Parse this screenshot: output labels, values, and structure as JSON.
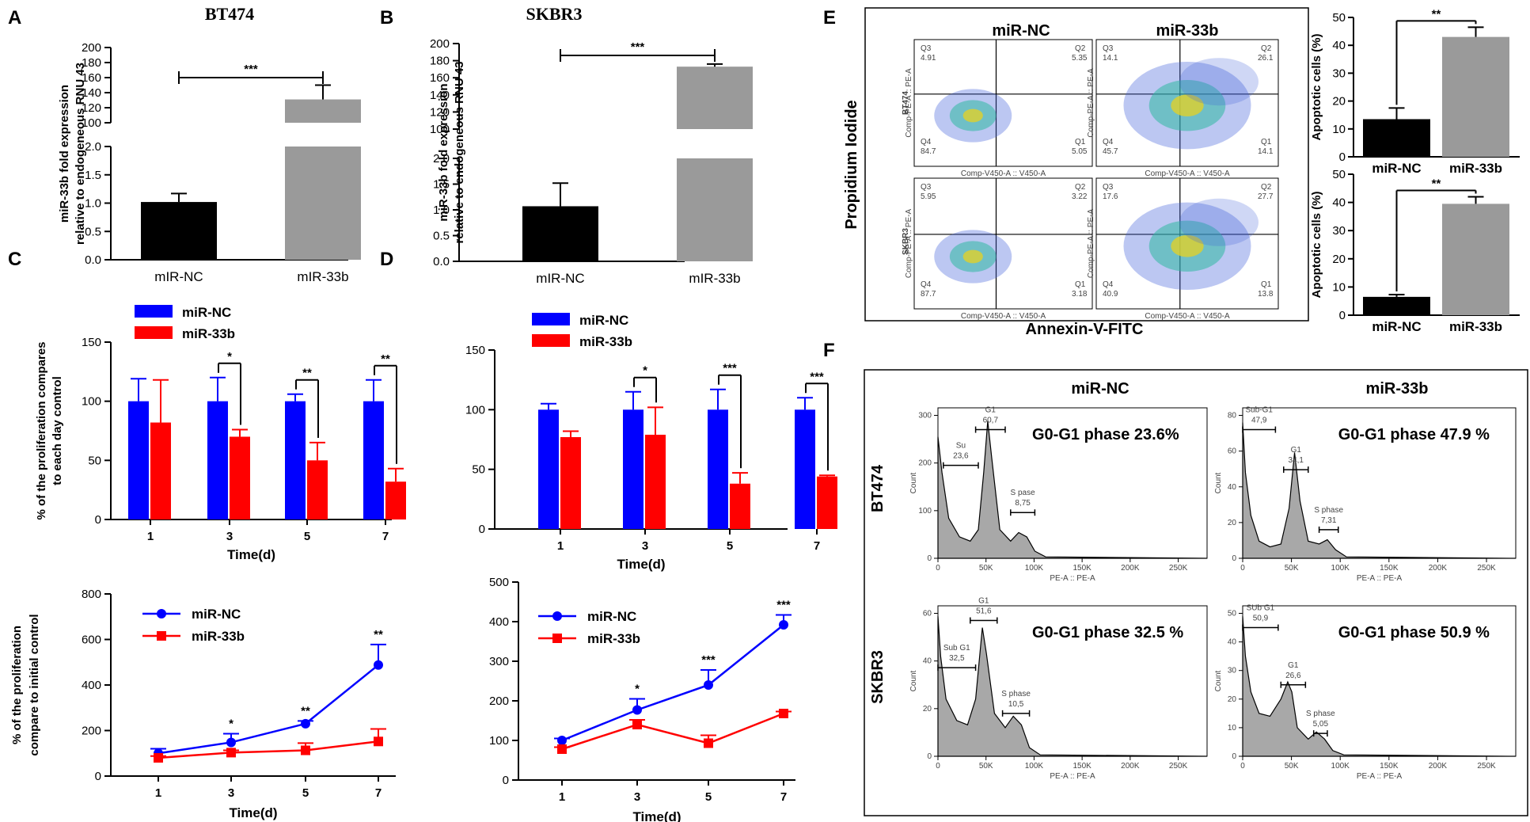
{
  "panel_labels": [
    "A",
    "B",
    "C",
    "D",
    "E",
    "F"
  ],
  "chart_data": [
    {
      "id": "A",
      "type": "bar",
      "title": "BT474",
      "ylabel": [
        "miR-33b fold expression",
        "relative to endogeneous RNU 43"
      ],
      "categories": [
        "mIR-NC",
        "mIR-33b"
      ],
      "values": [
        1.02,
        131
      ],
      "errors": [
        0.15,
        19
      ],
      "colors": [
        "#000000",
        "#9a9a9a"
      ],
      "broken_axis": true,
      "lower_ylim": [
        0,
        2.0
      ],
      "lower_ticks": [
        "0.0",
        "0.5",
        "1.0",
        "1.5",
        "2.0"
      ],
      "upper_ylim": [
        100,
        200
      ],
      "upper_ticks": [
        "100",
        "120",
        "140",
        "160",
        "180",
        "200"
      ],
      "significance": "***"
    },
    {
      "id": "B",
      "type": "bar",
      "title": "SKBR3",
      "ylabel": [
        "miR-33b fold expression",
        "relative to endogeneous RNU 43"
      ],
      "categories": [
        "mIR-NC",
        "mIR-33b"
      ],
      "values": [
        1.07,
        173
      ],
      "errors": [
        0.45,
        3
      ],
      "colors": [
        "#000000",
        "#9a9a9a"
      ],
      "broken_axis": true,
      "lower_ylim": [
        0,
        2.0
      ],
      "lower_ticks": [
        "0.0",
        "0.5",
        "1.0",
        "1.5",
        "2.0"
      ],
      "upper_ylim": [
        100,
        200
      ],
      "upper_ticks": [
        "100",
        "120",
        "140",
        "160",
        "180",
        "200"
      ],
      "significance": "***"
    },
    {
      "id": "C-bar",
      "type": "bar",
      "ylabel": [
        "% of the proliferation compares",
        "to each day control"
      ],
      "xlabel": "Time(d)",
      "categories": [
        "1",
        "3",
        "5",
        "7"
      ],
      "ylim": [
        0,
        150
      ],
      "yticks": [
        "0",
        "50",
        "100",
        "150"
      ],
      "legend": [
        "miR-NC",
        "miR-33b"
      ],
      "series": [
        {
          "name": "miR-NC",
          "color": "#0000ff",
          "values": [
            100,
            100,
            100,
            100
          ],
          "errors": [
            19,
            20,
            6,
            18
          ]
        },
        {
          "name": "miR-33b",
          "color": "#ff0000",
          "values": [
            82,
            70,
            50,
            32
          ],
          "errors": [
            36,
            6,
            15,
            11
          ]
        }
      ],
      "significance": [
        "",
        "*",
        "**",
        "**"
      ]
    },
    {
      "id": "D-bar",
      "type": "bar",
      "xlabel": "Time(d)",
      "categories": [
        "1",
        "3",
        "5",
        "7"
      ],
      "ylim": [
        0,
        150
      ],
      "yticks": [
        "0",
        "50",
        "100",
        "150"
      ],
      "legend": [
        "miR-NC",
        "miR-33b"
      ],
      "series": [
        {
          "name": "miR-NC",
          "color": "#0000ff",
          "values": [
            100,
            100,
            100,
            100
          ],
          "errors": [
            5,
            15,
            17,
            10
          ]
        },
        {
          "name": "miR-33b",
          "color": "#ff0000",
          "values": [
            77,
            79,
            38,
            44
          ],
          "errors": [
            5,
            23,
            9,
            1
          ]
        }
      ],
      "significance": [
        "",
        "*",
        "***",
        "***"
      ]
    },
    {
      "id": "C-line",
      "type": "line",
      "ylabel": [
        "% of the proliferation",
        "compare to initial control"
      ],
      "xlabel": "Time(d)",
      "x": [
        "1",
        "3",
        "5",
        "7"
      ],
      "ylim": [
        0,
        800
      ],
      "yticks": [
        "0",
        "200",
        "400",
        "600",
        "800"
      ],
      "legend": [
        "miR-NC",
        "miR-33b"
      ],
      "series": [
        {
          "name": "miR-NC",
          "color": "#0000ff",
          "values": [
            100,
            148,
            230,
            488
          ],
          "errors": [
            20,
            38,
            12,
            90
          ]
        },
        {
          "name": "miR-33b",
          "color": "#ff0000",
          "values": [
            80,
            103,
            113,
            152
          ],
          "errors": [
            8,
            10,
            32,
            55
          ]
        }
      ],
      "significance": [
        "",
        "*",
        "**",
        "**"
      ]
    },
    {
      "id": "D-line",
      "type": "line",
      "xlabel": "Time(d)",
      "x": [
        "1",
        "3",
        "5",
        "7"
      ],
      "ylim": [
        0,
        500
      ],
      "yticks": [
        "0",
        "100",
        "200",
        "300",
        "400",
        "500"
      ],
      "legend": [
        "miR-NC",
        "miR-33b"
      ],
      "series": [
        {
          "name": "miR-NC",
          "color": "#0000ff",
          "values": [
            100,
            177,
            240,
            392
          ],
          "errors": [
            5,
            28,
            38,
            25
          ]
        },
        {
          "name": "miR-33b",
          "color": "#ff0000",
          "values": [
            78,
            140,
            93,
            168
          ],
          "errors": [
            5,
            12,
            20,
            5
          ]
        }
      ],
      "significance": [
        "",
        "*",
        "***",
        "***"
      ]
    },
    {
      "id": "E-bar-1",
      "type": "bar",
      "ylabel": "Apoptotic cells (%)",
      "categories": [
        "miR-NC",
        "miR-33b"
      ],
      "ylim": [
        0,
        50
      ],
      "yticks": [
        "0",
        "10",
        "20",
        "30",
        "40",
        "50"
      ],
      "values": [
        13.5,
        43
      ],
      "errors": [
        4,
        3.5
      ],
      "colors": [
        "#000000",
        "#9a9a9a"
      ],
      "significance": "**"
    },
    {
      "id": "E-bar-2",
      "type": "bar",
      "ylabel": "Apoptotic cells (%)",
      "categories": [
        "miR-NC",
        "miR-33b"
      ],
      "ylim": [
        0,
        50
      ],
      "yticks": [
        "0",
        "10",
        "20",
        "30",
        "40",
        "50"
      ],
      "values": [
        6.5,
        39.5
      ],
      "errors": [
        0.8,
        2.5
      ],
      "colors": [
        "#000000",
        "#9a9a9a"
      ],
      "significance": "**"
    }
  ],
  "flow_cytometry": {
    "x_label": "Annexin-V-FITC",
    "y_label": "Propidium Iodide",
    "col_labels": [
      "miR-NC",
      "miR-33b"
    ],
    "row_labels": [
      "BT474",
      "SKBR3"
    ],
    "axis_x_text": "Comp-V450-A :: V450-A",
    "axis_y_text": "Comp-PE-A :: PE-A",
    "plots": [
      {
        "Q1": "5.05",
        "Q2": "5.35",
        "Q3": "4.91",
        "Q4": "84.7"
      },
      {
        "Q1": "14.1",
        "Q2": "26.1",
        "Q3": "14.1",
        "Q4": "45.7"
      },
      {
        "Q1": "3.18",
        "Q2": "3.22",
        "Q3": "5.95",
        "Q4": "87.7"
      },
      {
        "Q1": "13.8",
        "Q2": "27.7",
        "Q3": "17.6",
        "Q4": "40.9"
      }
    ]
  },
  "cell_cycle": {
    "col_labels": [
      "miR-NC",
      "miR-33b"
    ],
    "row_labels": [
      "BT474",
      "SKBR3"
    ],
    "x_axis": "PE-A :: PE-A",
    "y_axis": "Count",
    "x_ticks": [
      "0",
      "50K",
      "100K",
      "150K",
      "200K",
      "250K"
    ],
    "plots": [
      {
        "headline": "G0-G1 phase 23.6%",
        "y_ticks": [
          "0",
          "100",
          "200",
          "300"
        ],
        "gates": [
          {
            "name": "Su",
            "value": "23,6"
          },
          {
            "name": "G1",
            "value": "60,7"
          },
          {
            "name": "S pase",
            "value": "8,75"
          }
        ]
      },
      {
        "headline": "G0-G1 phase 47.9 %",
        "y_ticks": [
          "0",
          "20",
          "40",
          "60",
          "80"
        ],
        "gates": [
          {
            "name": "Sub-G1",
            "value": "47,9"
          },
          {
            "name": "G1",
            "value": "34,1"
          },
          {
            "name": "S phase",
            "value": "7,31"
          }
        ]
      },
      {
        "headline": "G0-G1 phase 32.5 %",
        "y_ticks": [
          "0",
          "20",
          "40",
          "60"
        ],
        "gates": [
          {
            "name": "Sub G1",
            "value": "32,5"
          },
          {
            "name": "G1",
            "value": "51,6"
          },
          {
            "name": "S phase",
            "value": "10,5"
          }
        ]
      },
      {
        "headline": "G0-G1 phase 50.9 %",
        "y_ticks": [
          "0",
          "10",
          "20",
          "30",
          "40",
          "50"
        ],
        "gates": [
          {
            "name": "SUb G1",
            "value": "50,9"
          },
          {
            "name": "G1",
            "value": "26,6"
          },
          {
            "name": "S phase",
            "value": "5,05"
          }
        ]
      }
    ]
  }
}
